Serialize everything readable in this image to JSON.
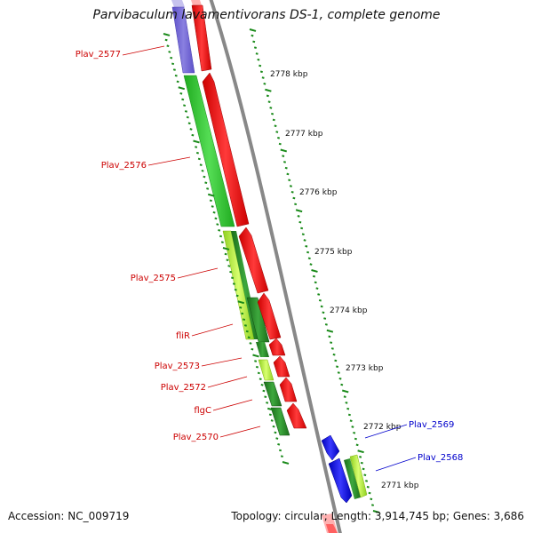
{
  "title": "Parvibaculum lavamentivorans DS-1, complete genome",
  "accession": "Accession: NC_009719",
  "summary": "Topology: circular; Length: 3,914,745 bp; Genes: 3,686",
  "ticks": [
    "2778 kbp",
    "2777 kbp",
    "2776 kbp",
    "2775 kbp",
    "2774 kbp",
    "2773 kbp",
    "2772 kbp",
    "2771 kbp"
  ],
  "genes": [
    {
      "label": "Plav_2577",
      "strand": "left"
    },
    {
      "label": "Plav_2576",
      "strand": "left"
    },
    {
      "label": "Plav_2575",
      "strand": "left"
    },
    {
      "label": "fliR",
      "strand": "left"
    },
    {
      "label": "Plav_2573",
      "strand": "left"
    },
    {
      "label": "Plav_2572",
      "strand": "left"
    },
    {
      "label": "flgC",
      "strand": "left"
    },
    {
      "label": "Plav_2570",
      "strand": "left"
    },
    {
      "label": "Plav_2569",
      "strand": "right"
    },
    {
      "label": "Plav_2568",
      "strand": "right"
    }
  ],
  "colors": {
    "forward_cds": "#ff0000",
    "reverse_cds": "#0000ff",
    "backbone": "#888888",
    "tick": "#1a8a1a",
    "label_left": "#cc0000",
    "label_right": "#0000cc",
    "purple": "#7a6ad0",
    "light_green": "#33cc33",
    "yellow_green": "#b8f040",
    "dark_green": "#2a8a2a"
  }
}
